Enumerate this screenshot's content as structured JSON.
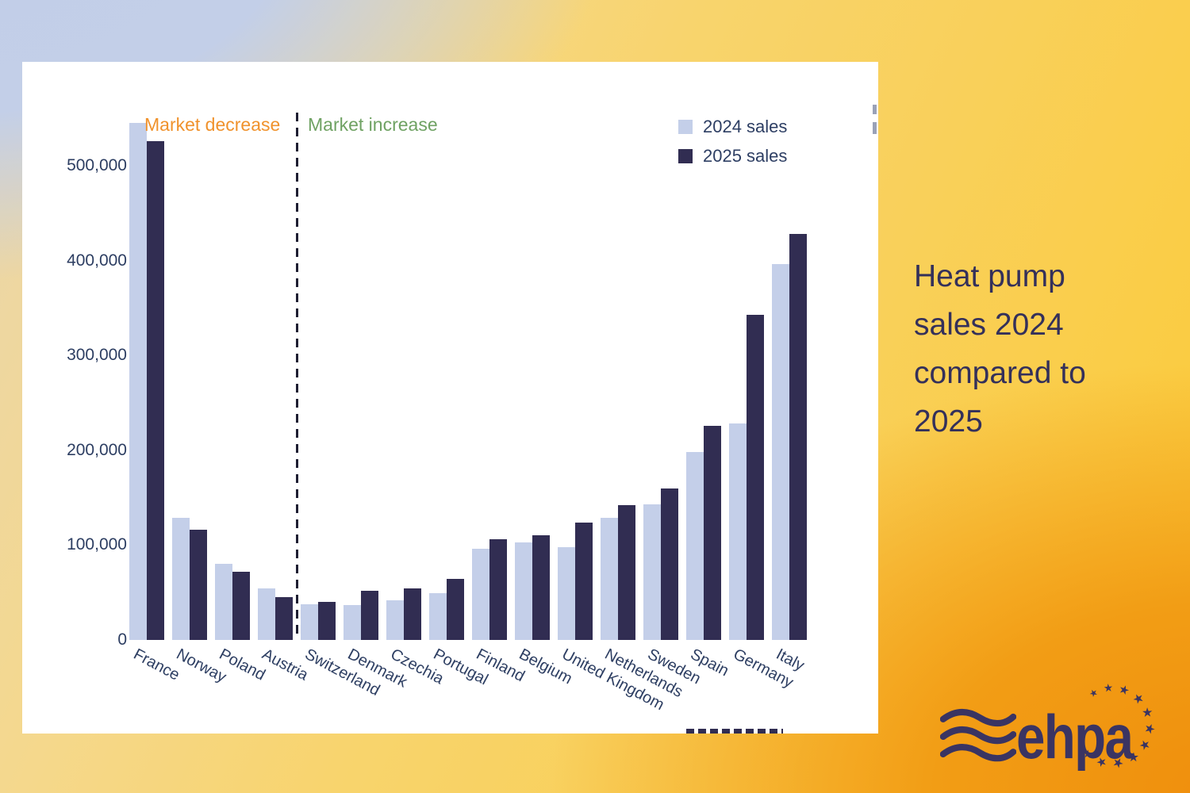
{
  "chart_data": {
    "type": "bar",
    "title": "",
    "categories": [
      "France",
      "Norway",
      "Poland",
      "Austria",
      "Switzerland",
      "Denmark",
      "Czechia",
      "Portugal",
      "Finland",
      "Belgium",
      "United Kingdom",
      "Netherlands",
      "Sweden",
      "Spain",
      "Germany",
      "Italy"
    ],
    "series": [
      {
        "name": "2024 sales",
        "color": "#c4cfe9",
        "values": [
          545000,
          129000,
          80000,
          54000,
          38000,
          37000,
          42000,
          49000,
          96000,
          103000,
          98000,
          129000,
          143000,
          198000,
          228000,
          396000
        ]
      },
      {
        "name": "2025 sales",
        "color": "#312d52",
        "values": [
          526000,
          116000,
          72000,
          45000,
          40000,
          52000,
          54000,
          64000,
          106000,
          110000,
          124000,
          142000,
          160000,
          226000,
          343000,
          428000
        ]
      }
    ],
    "yticks": [
      0,
      100000,
      200000,
      300000,
      400000,
      500000
    ],
    "ytick_labels": [
      "0",
      "100,000",
      "200,000",
      "300,000",
      "400,000",
      "500,000"
    ],
    "ylim": [
      0,
      560000
    ],
    "grid": false,
    "legend_position": "top-right",
    "annotations": {
      "decrease_label": "Market decrease",
      "increase_label": "Market increase",
      "divider_between": [
        "Austria",
        "Switzerland"
      ]
    }
  },
  "sidebar": {
    "title_lines": [
      "Heat pump",
      "sales 2024",
      "compared to",
      "2025"
    ]
  },
  "logo": {
    "text": "ehpa"
  },
  "colors": {
    "bar_2024": "#c4cfe9",
    "bar_2025": "#312d52",
    "axis_text": "#2d3e62",
    "annotation_decrease": "#f0922c",
    "annotation_increase": "#6fa263",
    "title_text": "#34305a",
    "logo_navy": "#3a3462",
    "bg_periwinkle": "#c2cee8",
    "bg_yellow": "#f8d46d",
    "bg_orange": "#f0910f",
    "panel": "#ffffff"
  }
}
